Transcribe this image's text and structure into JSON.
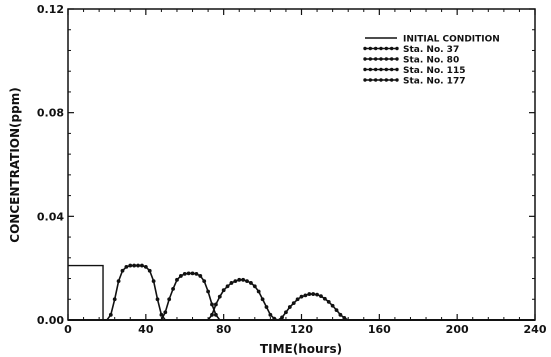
{
  "chart_data": {
    "type": "line",
    "title": "",
    "xlabel": "TIME(hours)",
    "ylabel": "CONCENTRATION(ppm)",
    "xlim": [
      0,
      240
    ],
    "ylim": [
      0,
      0.12
    ],
    "x_ticks": [
      0,
      40,
      80,
      120,
      160,
      200,
      240
    ],
    "x_tick_labels": [
      "0",
      "40",
      "80",
      "120",
      "160",
      "200",
      "240"
    ],
    "y_ticks": [
      0,
      0.04,
      0.08,
      0.12
    ],
    "y_tick_labels": [
      "0.00",
      "0.04",
      "0.08",
      "0.12"
    ],
    "grid": false,
    "legend_position": "top-right",
    "series": [
      {
        "name": "INITIAL CONDITION",
        "marker": "none",
        "x": [
          0,
          18,
          18,
          240
        ],
        "y": [
          0.021,
          0.021,
          0,
          0
        ]
      },
      {
        "name": "Sta. No. 37",
        "marker": "dot",
        "x": [
          0,
          20,
          22,
          24,
          26,
          28,
          30,
          32,
          34,
          36,
          38,
          40,
          42,
          44,
          46,
          48,
          50,
          52,
          56,
          60,
          80,
          120,
          160,
          200,
          240
        ],
        "y": [
          0,
          0,
          0.002,
          0.008,
          0.015,
          0.019,
          0.0205,
          0.021,
          0.021,
          0.021,
          0.021,
          0.0205,
          0.019,
          0.015,
          0.008,
          0.002,
          0,
          0,
          0,
          0,
          0,
          0,
          0,
          0,
          0
        ]
      },
      {
        "name": "Sta. No. 80",
        "marker": "dot",
        "x": [
          0,
          40,
          48,
          50,
          52,
          54,
          56,
          58,
          60,
          62,
          64,
          66,
          68,
          70,
          72,
          74,
          76,
          78,
          80,
          84,
          100,
          140,
          180,
          240
        ],
        "y": [
          0,
          0,
          0,
          0.003,
          0.008,
          0.012,
          0.0155,
          0.017,
          0.0178,
          0.018,
          0.018,
          0.0178,
          0.017,
          0.015,
          0.011,
          0.006,
          0.002,
          0,
          0,
          0,
          0,
          0,
          0,
          0
        ]
      },
      {
        "name": "Sta. No. 115",
        "marker": "dot",
        "x": [
          0,
          60,
          72,
          74,
          76,
          78,
          80,
          82,
          84,
          86,
          88,
          90,
          92,
          94,
          96,
          98,
          100,
          102,
          104,
          106,
          108,
          112,
          120,
          160,
          200,
          240
        ],
        "y": [
          0,
          0,
          0,
          0.002,
          0.006,
          0.009,
          0.0115,
          0.013,
          0.0143,
          0.015,
          0.0155,
          0.0155,
          0.015,
          0.0143,
          0.013,
          0.011,
          0.008,
          0.005,
          0.002,
          0.0005,
          0,
          0,
          0,
          0,
          0,
          0
        ]
      },
      {
        "name": "Sta. No. 177",
        "marker": "dot",
        "x": [
          0,
          100,
          108,
          110,
          112,
          114,
          116,
          118,
          120,
          122,
          124,
          126,
          128,
          130,
          132,
          134,
          136,
          138,
          140,
          142,
          144,
          148,
          160,
          200,
          240
        ],
        "y": [
          0,
          0,
          0,
          0.001,
          0.003,
          0.005,
          0.0065,
          0.008,
          0.009,
          0.0095,
          0.01,
          0.01,
          0.0098,
          0.0092,
          0.0082,
          0.007,
          0.0055,
          0.0038,
          0.002,
          0.0008,
          0,
          0,
          0,
          0,
          0
        ]
      }
    ]
  }
}
